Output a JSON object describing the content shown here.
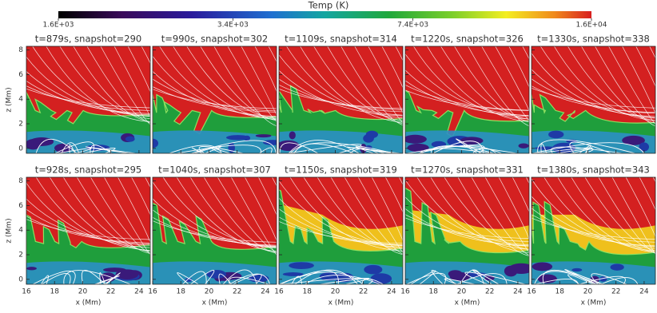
{
  "colorbar": {
    "label": "Temp (K)",
    "scale": "log",
    "lim": [
      1600,
      16000
    ],
    "ticks": [
      {
        "value": 1600,
        "label": "1.6E+03"
      },
      {
        "value": 3400,
        "label": "3.4E+03"
      },
      {
        "value": 7400,
        "label": "7.4E+03"
      },
      {
        "value": 16000,
        "label": "1.6E+04"
      }
    ]
  },
  "panels": [
    {
      "title": "t=879s, snapshot=290"
    },
    {
      "title": "t=990s, snapshot=302"
    },
    {
      "title": "t=1109s, snapshot=314"
    },
    {
      "title": "t=1220s, snapshot=326"
    },
    {
      "title": "t=1330s, snapshot=338"
    },
    {
      "title": "t=928s, snapshot=295"
    },
    {
      "title": "t=1040s, snapshot=307"
    },
    {
      "title": "t=1150s, snapshot=319"
    },
    {
      "title": "t=1270s, snapshot=331"
    },
    {
      "title": "t=1380s, snapshot=343"
    }
  ],
  "xlabel": "x (Mm)",
  "ylabel": "z (Mm)",
  "xlim": [
    16,
    24.8
  ],
  "ylim": [
    -0.4,
    8.3
  ],
  "xticks": [
    16,
    18,
    20,
    22,
    24
  ],
  "yticks": [
    0,
    2,
    4,
    6,
    8
  ]
}
